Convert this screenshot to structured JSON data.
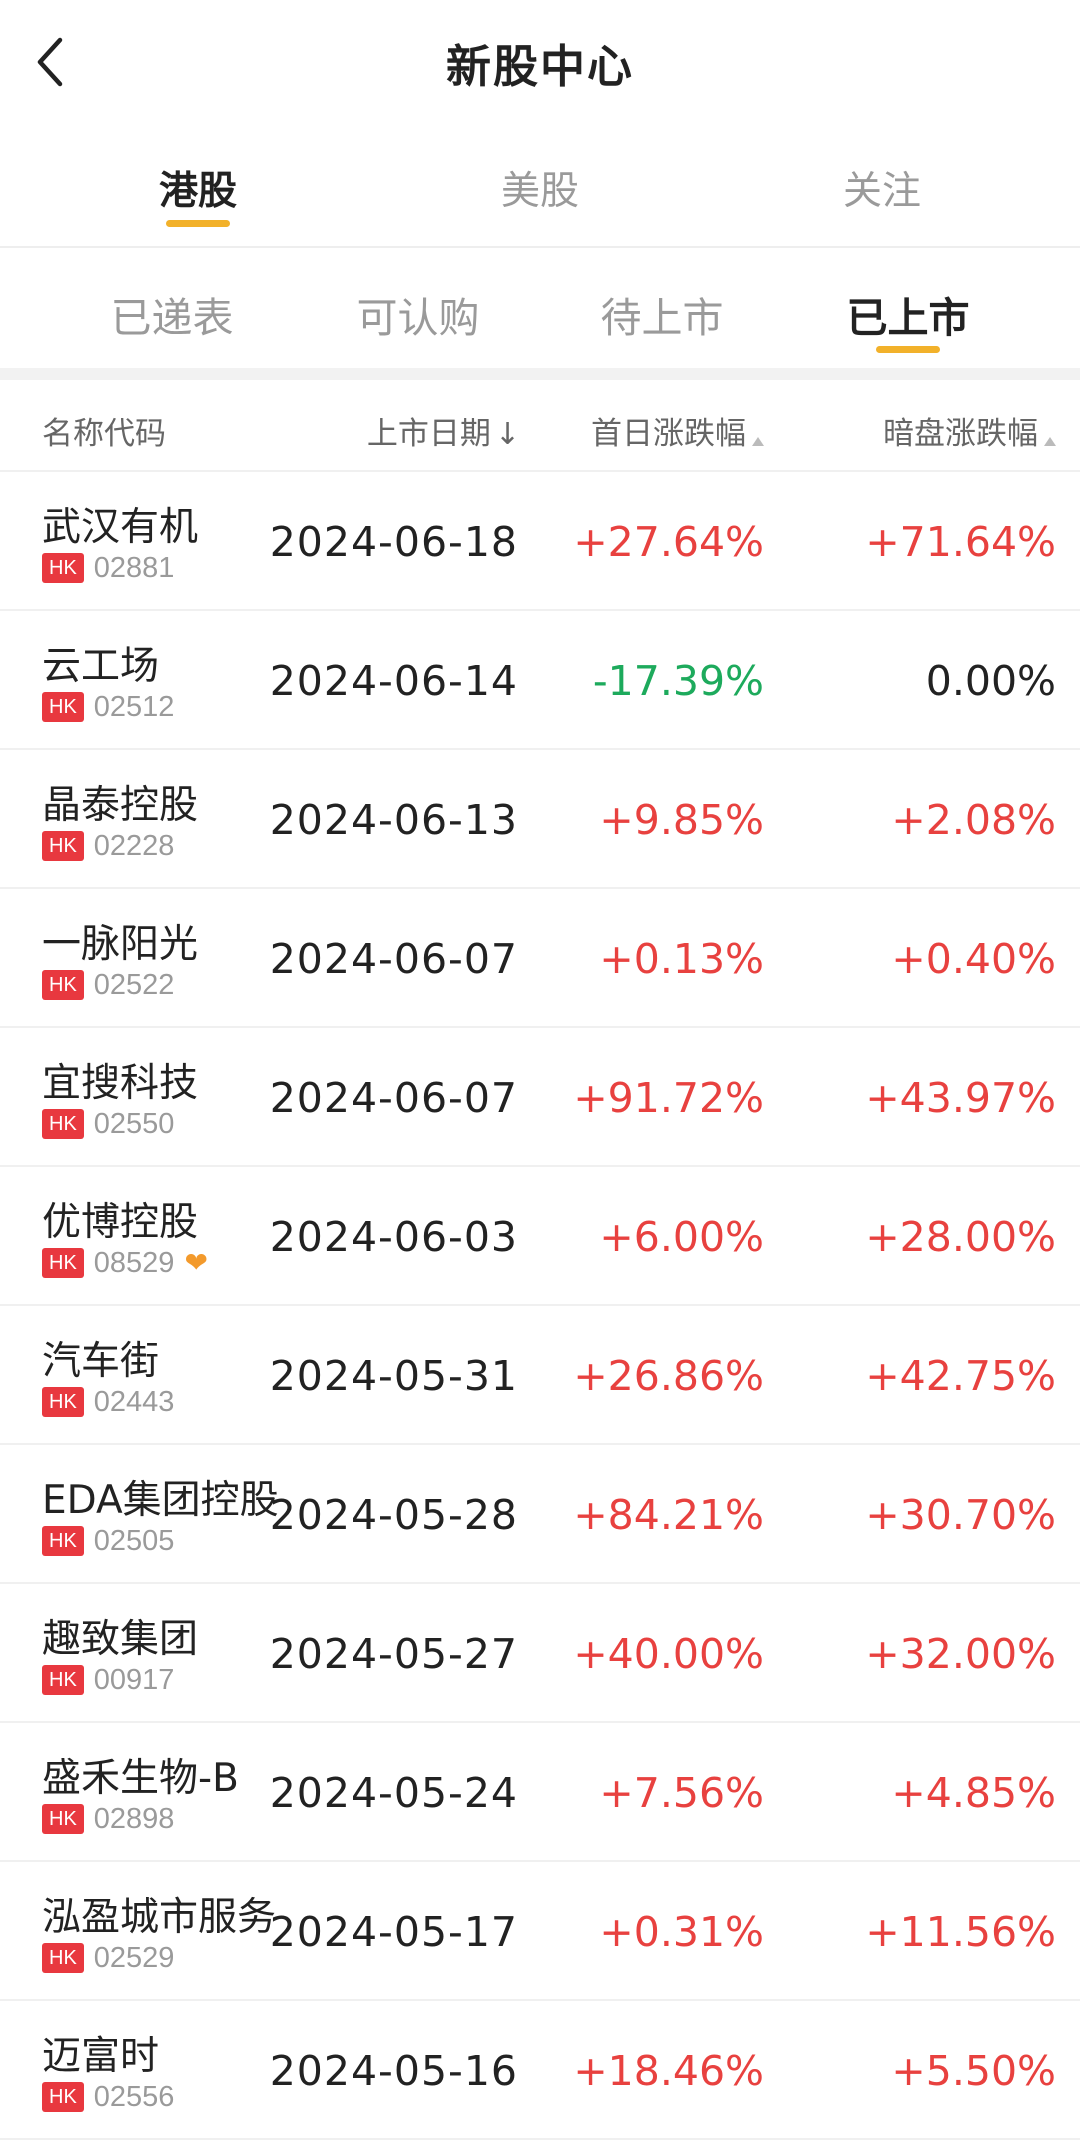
{
  "header": {
    "title": "新股中心",
    "back_icon": "chevron-left-icon"
  },
  "main_tabs": [
    {
      "label": "港股",
      "active": true
    },
    {
      "label": "美股",
      "active": false
    },
    {
      "label": "关注",
      "active": false
    }
  ],
  "sub_tabs": [
    {
      "label": "已递表",
      "active": false
    },
    {
      "label": "可认购",
      "active": false
    },
    {
      "label": "待上市",
      "active": false
    },
    {
      "label": "已上市",
      "active": true
    }
  ],
  "table": {
    "headers": {
      "name": "名称代码",
      "date": "上市日期",
      "first_day": "首日涨跌幅",
      "dark_pool": "暗盘涨跌幅"
    },
    "market_badge": "HK",
    "colors": {
      "up": "#e8413f",
      "down": "#1daa5c",
      "neutral": "#222222"
    },
    "rows": [
      {
        "name": "武汉有机",
        "code": "02881",
        "date": "2024-06-18",
        "first": "+27.64%",
        "dark": "+71.64%",
        "first_dir": "up",
        "dark_dir": "up"
      },
      {
        "name": "云工场",
        "code": "02512",
        "date": "2024-06-14",
        "first": "-17.39%",
        "dark": "0.00%",
        "first_dir": "down",
        "dark_dir": "neutral"
      },
      {
        "name": "晶泰控股",
        "code": "02228",
        "date": "2024-06-13",
        "first": "+9.85%",
        "dark": "+2.08%",
        "first_dir": "up",
        "dark_dir": "up"
      },
      {
        "name": "一脉阳光",
        "code": "02522",
        "date": "2024-06-07",
        "first": "+0.13%",
        "dark": "+0.40%",
        "first_dir": "up",
        "dark_dir": "up"
      },
      {
        "name": "宜搜科技",
        "code": "02550",
        "date": "2024-06-07",
        "first": "+91.72%",
        "dark": "+43.97%",
        "first_dir": "up",
        "dark_dir": "up"
      },
      {
        "name": "优博控股",
        "code": "08529",
        "date": "2024-06-03",
        "first": "+6.00%",
        "dark": "+28.00%",
        "first_dir": "up",
        "dark_dir": "up",
        "heart": true
      },
      {
        "name": "汽车街",
        "code": "02443",
        "date": "2024-05-31",
        "first": "+26.86%",
        "dark": "+42.75%",
        "first_dir": "up",
        "dark_dir": "up"
      },
      {
        "name": "EDA集团控股",
        "code": "02505",
        "date": "2024-05-28",
        "first": "+84.21%",
        "dark": "+30.70%",
        "first_dir": "up",
        "dark_dir": "up"
      },
      {
        "name": "趣致集团",
        "code": "00917",
        "date": "2024-05-27",
        "first": "+40.00%",
        "dark": "+32.00%",
        "first_dir": "up",
        "dark_dir": "up"
      },
      {
        "name": "盛禾生物-B",
        "code": "02898",
        "date": "2024-05-24",
        "first": "+7.56%",
        "dark": "+4.85%",
        "first_dir": "up",
        "dark_dir": "up"
      },
      {
        "name": "泓盈城市服务",
        "code": "02529",
        "date": "2024-05-17",
        "first": "+0.31%",
        "dark": "+11.56%",
        "first_dir": "up",
        "dark_dir": "up"
      },
      {
        "name": "迈富时",
        "code": "02556",
        "date": "2024-05-16",
        "first": "+18.46%",
        "dark": "+5.50%",
        "first_dir": "up",
        "dark_dir": "up"
      }
    ]
  }
}
